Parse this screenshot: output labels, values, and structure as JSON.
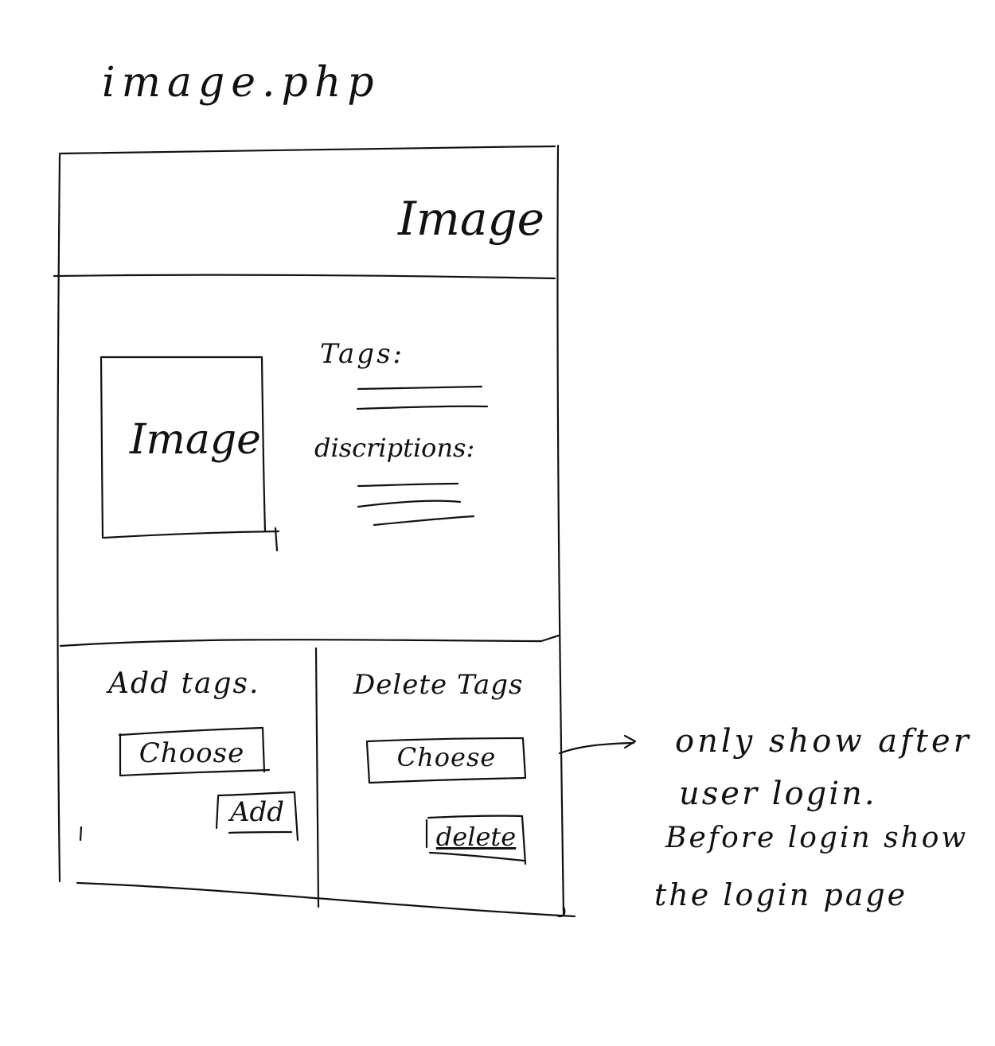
{
  "page_title": "image.php",
  "header": {
    "title": "Image"
  },
  "main": {
    "image_placeholder": "Image",
    "tags_label": "Tags:",
    "descriptions_label": "discriptions:"
  },
  "add_tags": {
    "heading": "Add tags.",
    "choose_label": "Choose",
    "add_label": "Add"
  },
  "delete_tags": {
    "heading": "Delete Tags",
    "choose_label": "Choese",
    "delete_label": "delete"
  },
  "note": {
    "lines": [
      "only show after",
      "user login.",
      "Before login show",
      "the login page"
    ]
  }
}
